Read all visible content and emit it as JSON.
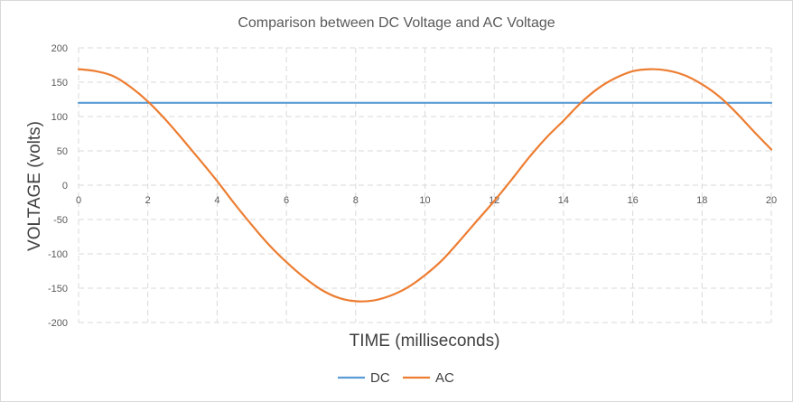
{
  "chart_data": {
    "type": "line",
    "title": "Comparison between DC Voltage and AC Voltage",
    "xlabel": "TIME (milliseconds)",
    "ylabel": "VOLTAGE (volts)",
    "xlim": [
      0,
      20
    ],
    "ylim": [
      -200,
      200
    ],
    "x_ticks": [
      0,
      2,
      4,
      6,
      8,
      10,
      12,
      14,
      16,
      18,
      20
    ],
    "y_ticks": [
      200,
      150,
      100,
      50,
      0,
      -50,
      -100,
      -150,
      -200
    ],
    "grid": true,
    "grid_style": "dashed",
    "legend_position": "bottom",
    "series": [
      {
        "name": "DC",
        "color": "#5b9bd5",
        "x": [
          0,
          20
        ],
        "y": [
          120,
          120
        ]
      },
      {
        "name": "AC",
        "color": "#ed7d31",
        "x": [
          0,
          0.5,
          1,
          1.5,
          2,
          2.5,
          3,
          3.5,
          4,
          4.5,
          5,
          5.5,
          6,
          6.5,
          7,
          7.5,
          8,
          8.5,
          9,
          9.5,
          10,
          10.5,
          11,
          11.5,
          12,
          12.5,
          13,
          13.5,
          14,
          14.5,
          15,
          15.5,
          16,
          16.5,
          17,
          17.5,
          18,
          18.5,
          19,
          19.5,
          20
        ],
        "y": [
          169,
          166,
          159,
          143,
          122,
          96,
          67,
          37,
          6,
          -27,
          -58,
          -87,
          -112,
          -134,
          -152,
          -164,
          -169,
          -168,
          -161,
          -149,
          -131,
          -109,
          -81,
          -52,
          -23,
          8,
          40,
          69,
          94,
          120,
          141,
          156,
          166,
          169,
          167,
          160,
          147,
          129,
          105,
          78,
          52
        ]
      }
    ]
  }
}
